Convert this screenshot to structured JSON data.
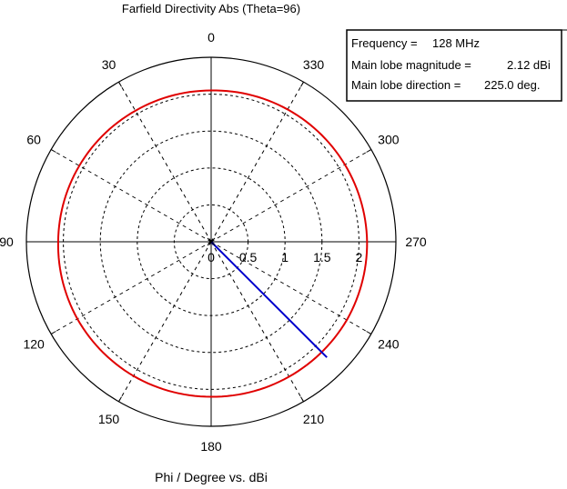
{
  "chart_data": {
    "type": "polar-line",
    "title": "Farfield Directivity Abs (Theta=96)",
    "xlabel": "Phi / Degree vs. dBi",
    "angular_ticks": [
      "0",
      "30",
      "60",
      "90",
      "120",
      "150",
      "180",
      "210",
      "240",
      "270",
      "300",
      "330"
    ],
    "angular_direction": "counterclockwise",
    "zero_position": "top",
    "radial_ticks": [
      "0",
      "0.5",
      "1",
      "1.5",
      "2"
    ],
    "rlim": [
      0,
      2.5
    ],
    "grid": true,
    "series": [
      {
        "color": "#e00000",
        "phi_deg": [
          0,
          30,
          60,
          90,
          120,
          150,
          180,
          210,
          240,
          270,
          300,
          330,
          360
        ],
        "values": [
          2.05,
          2.05,
          2.06,
          2.07,
          2.09,
          2.1,
          2.1,
          2.11,
          2.12,
          2.11,
          2.09,
          2.07,
          2.05
        ]
      }
    ],
    "main_lobe_line": {
      "phi_deg": 225.0,
      "value": 2.12,
      "color": "#0000cc"
    },
    "info_box": {
      "lines": [
        [
          "Frequency =",
          "128 MHz"
        ],
        [
          "Main lobe magnitude =",
          "2.12 dBi"
        ],
        [
          "Main lobe direction =",
          "225.0 deg."
        ]
      ]
    }
  }
}
